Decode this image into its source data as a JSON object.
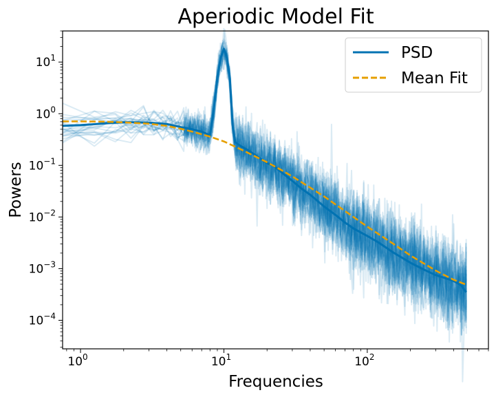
{
  "chart_data": {
    "type": "line",
    "title": "Aperiodic Model Fit",
    "xlabel": "Frequencies",
    "ylabel": "Powers",
    "xscale": "log",
    "yscale": "log",
    "xlim": [
      0.75,
      700
    ],
    "ylim": [
      2.8e-05,
      40
    ],
    "xticks": [
      {
        "value": 1,
        "base": "10",
        "exp": "0"
      },
      {
        "value": 10,
        "base": "10",
        "exp": "1"
      },
      {
        "value": 100,
        "base": "10",
        "exp": "2"
      }
    ],
    "yticks": [
      {
        "value": 0.0001,
        "base": "10",
        "exp": "−4"
      },
      {
        "value": 0.001,
        "base": "10",
        "exp": "−3"
      },
      {
        "value": 0.01,
        "base": "10",
        "exp": "−2"
      },
      {
        "value": 0.1,
        "base": "10",
        "exp": "−1"
      },
      {
        "value": 1,
        "base": "10",
        "exp": "0"
      },
      {
        "value": 10,
        "base": "10",
        "exp": "1"
      }
    ],
    "grid": false,
    "legend_position": "top-right",
    "colors": {
      "psd": "#0072b2",
      "fit": "#e69f00"
    },
    "series": [
      {
        "name": "PSD",
        "style": "solid",
        "x": [
          0.75,
          1,
          1.5,
          2,
          2.5,
          3,
          4,
          5,
          6,
          7,
          8,
          8.5,
          9,
          9.5,
          10,
          10.5,
          11,
          11.5,
          12,
          13,
          15,
          17,
          20,
          22,
          25,
          30,
          35,
          40,
          50,
          60,
          70,
          80,
          100,
          120,
          150,
          200,
          250,
          300,
          400,
          450,
          490
        ],
        "y": [
          0.58,
          0.6,
          0.65,
          0.68,
          0.68,
          0.67,
          0.63,
          0.55,
          0.5,
          0.45,
          0.38,
          1.2,
          5.0,
          12.0,
          18.0,
          12.0,
          5.0,
          0.6,
          0.28,
          0.24,
          0.19,
          0.15,
          0.11,
          0.1,
          0.075,
          0.05,
          0.035,
          0.027,
          0.016,
          0.011,
          0.0078,
          0.006,
          0.0043,
          0.0032,
          0.0021,
          0.0013,
          0.00095,
          0.00075,
          0.00058,
          0.00048,
          0.00035
        ]
      },
      {
        "name": "Mean Fit",
        "style": "dashed",
        "x": [
          0.75,
          1,
          1.5,
          2,
          3,
          4,
          5,
          6,
          7,
          8,
          10,
          12,
          15,
          20,
          25,
          30,
          40,
          50,
          70,
          100,
          150,
          200,
          300,
          400,
          490
        ],
        "y": [
          0.71,
          0.71,
          0.7,
          0.68,
          0.64,
          0.58,
          0.51,
          0.45,
          0.4,
          0.36,
          0.29,
          0.23,
          0.17,
          0.115,
          0.082,
          0.061,
          0.037,
          0.025,
          0.013,
          0.0065,
          0.0031,
          0.0018,
          0.00092,
          0.00061,
          0.00049
        ]
      }
    ]
  }
}
